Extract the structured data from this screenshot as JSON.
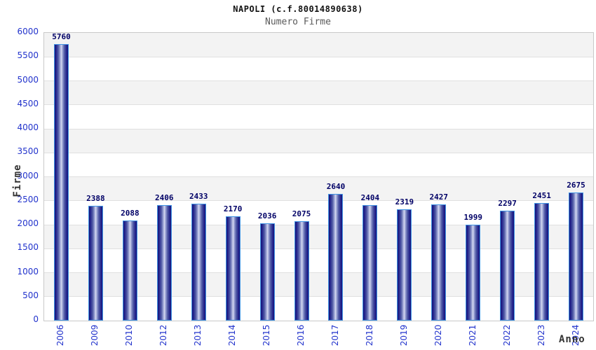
{
  "header": {
    "title": "NAPOLI (c.f.80014890638)",
    "subtitle": "Numero Firme"
  },
  "chart_data": {
    "type": "bar",
    "title": "NAPOLI (c.f.80014890638)",
    "subtitle": "Numero Firme",
    "xlabel": "Anno",
    "ylabel": "Firme",
    "categories": [
      "2006",
      "2009",
      "2010",
      "2012",
      "2013",
      "2014",
      "2015",
      "2016",
      "2017",
      "2018",
      "2019",
      "2020",
      "2021",
      "2022",
      "2023",
      "2024"
    ],
    "values": [
      5760,
      2388,
      2088,
      2406,
      2433,
      2170,
      2036,
      2075,
      2640,
      2404,
      2319,
      2427,
      1999,
      2297,
      2451,
      2675
    ],
    "ylim": [
      0,
      6000
    ],
    "yticks": [
      0,
      500,
      1000,
      1500,
      2000,
      2500,
      3000,
      3500,
      4000,
      4500,
      5000,
      5500,
      6000
    ],
    "grid": true,
    "legend": "none",
    "colors": {
      "bar_dark": "#1b1b80",
      "bar_light_center": "#d9ddf1",
      "bar_outline": "#4094e4",
      "tick_label": "#2233cc",
      "value_label": "#000066",
      "band_gray": "#f3f3f3",
      "band_white": "#ffffff",
      "gridline": "#e0e0e0",
      "plot_border": "#c9c9c9",
      "axis_title": "#333333",
      "title": "#111111",
      "subtitle": "#5a5a5a"
    }
  }
}
